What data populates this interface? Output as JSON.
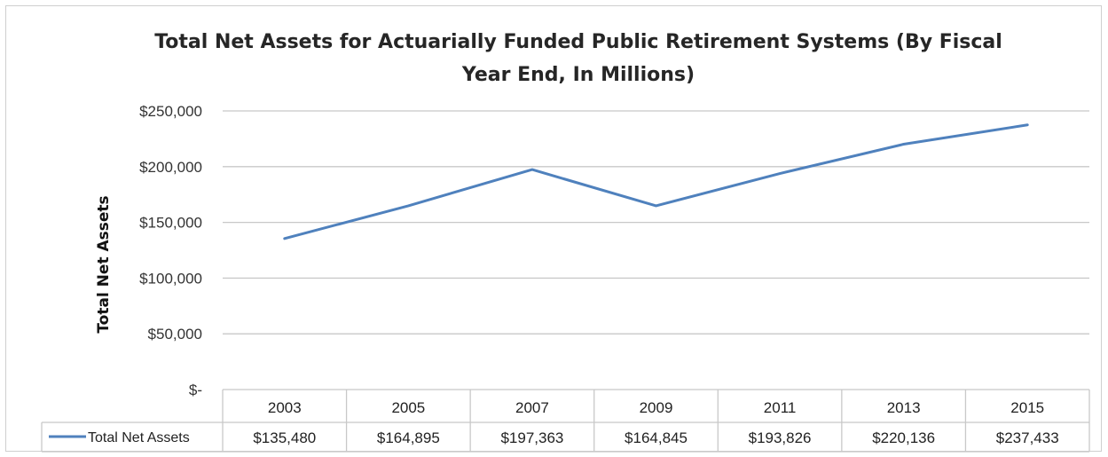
{
  "chart_data": {
    "type": "line",
    "title": "Total Net Assets for Actuarially Funded Public Retirement Systems (By Fiscal",
    "title_line2": "Year End, In Millions)",
    "ylabel": "Total Net Assets",
    "xlabel": "",
    "categories": [
      "2003",
      "2005",
      "2007",
      "2009",
      "2011",
      "2013",
      "2015"
    ],
    "series": [
      {
        "name": "Total Net Assets",
        "values": [
          135480,
          164895,
          197363,
          164845,
          193826,
          220136,
          237433
        ],
        "value_labels": [
          "$135,480",
          "$164,895",
          "$197,363",
          "$164,845",
          "$193,826",
          "$220,136",
          "$237,433"
        ],
        "color": "#4f81bd"
      }
    ],
    "ylim": [
      0,
      250000
    ],
    "yticks": [
      0,
      50000,
      100000,
      150000,
      200000,
      250000
    ],
    "ytick_labels": [
      "$-",
      "$50,000",
      "$100,000",
      "$150,000",
      "$200,000",
      "$250,000"
    ],
    "grid": true,
    "legend": "data-table-left"
  }
}
